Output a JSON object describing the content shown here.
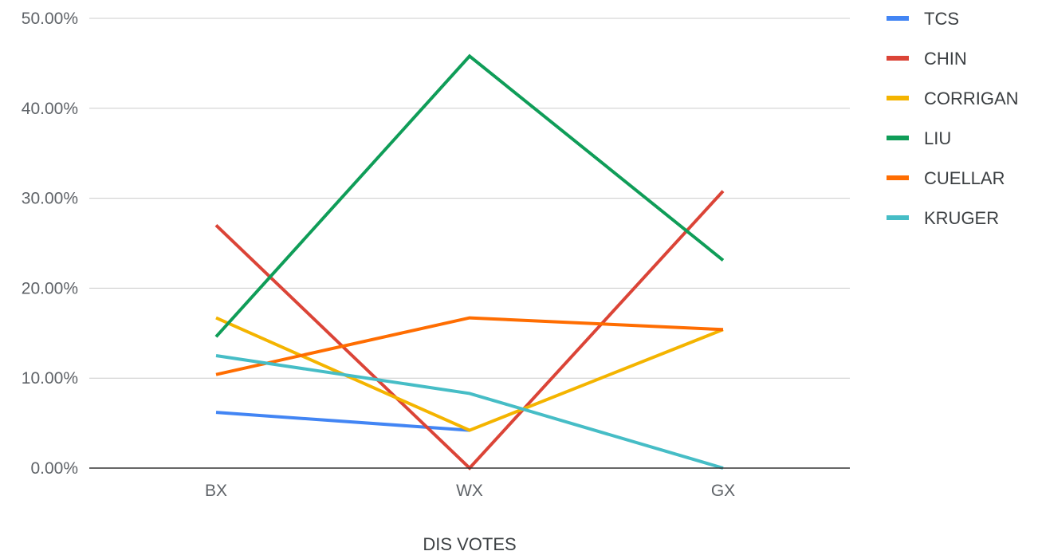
{
  "chart_data": {
    "type": "line",
    "title": "",
    "xlabel": "DIS VOTES",
    "ylabel": "",
    "categories": [
      "BX",
      "WX",
      "GX"
    ],
    "y_ticks": [
      "0.00%",
      "10.00%",
      "20.00%",
      "30.00%",
      "40.00%",
      "50.00%"
    ],
    "ylim": [
      0,
      50
    ],
    "grid": true,
    "legend_position": "right",
    "series": [
      {
        "name": "TCS",
        "color": "#4285f4",
        "values": [
          6.2,
          4.2,
          null
        ]
      },
      {
        "name": "CHIN",
        "color": "#db4437",
        "values": [
          27.0,
          0.0,
          30.8
        ]
      },
      {
        "name": "CORRIGAN",
        "color": "#f4b400",
        "values": [
          16.7,
          4.2,
          15.4
        ]
      },
      {
        "name": "LIU",
        "color": "#0f9d58",
        "values": [
          14.6,
          45.8,
          23.1
        ]
      },
      {
        "name": "CUELLAR",
        "color": "#ff6d01",
        "values": [
          10.4,
          16.7,
          15.4
        ]
      },
      {
        "name": "KRUGER",
        "color": "#46bdc6",
        "values": [
          12.5,
          8.3,
          0.0
        ]
      }
    ]
  }
}
